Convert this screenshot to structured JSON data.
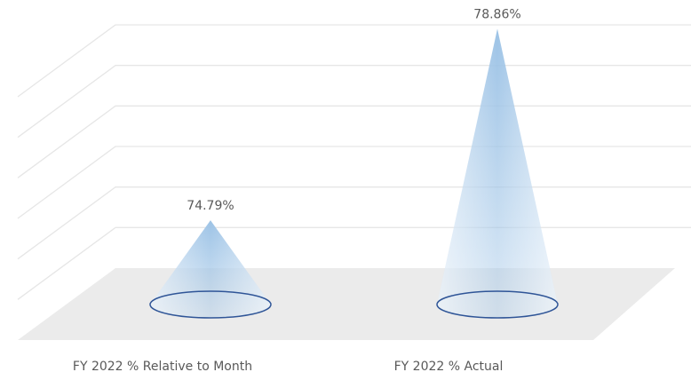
{
  "chart_data": {
    "type": "cone",
    "categories": [
      "FY 2022 % Relative to Month",
      "FY 2022 % Actual"
    ],
    "values": [
      74.79,
      78.86
    ],
    "value_labels": [
      "74.79%",
      "78.86%"
    ],
    "color": "#9dc3e6",
    "ylim": [
      73,
      79
    ],
    "yticks": [
      73,
      74,
      75,
      76,
      77,
      78,
      79
    ],
    "grid": true
  }
}
